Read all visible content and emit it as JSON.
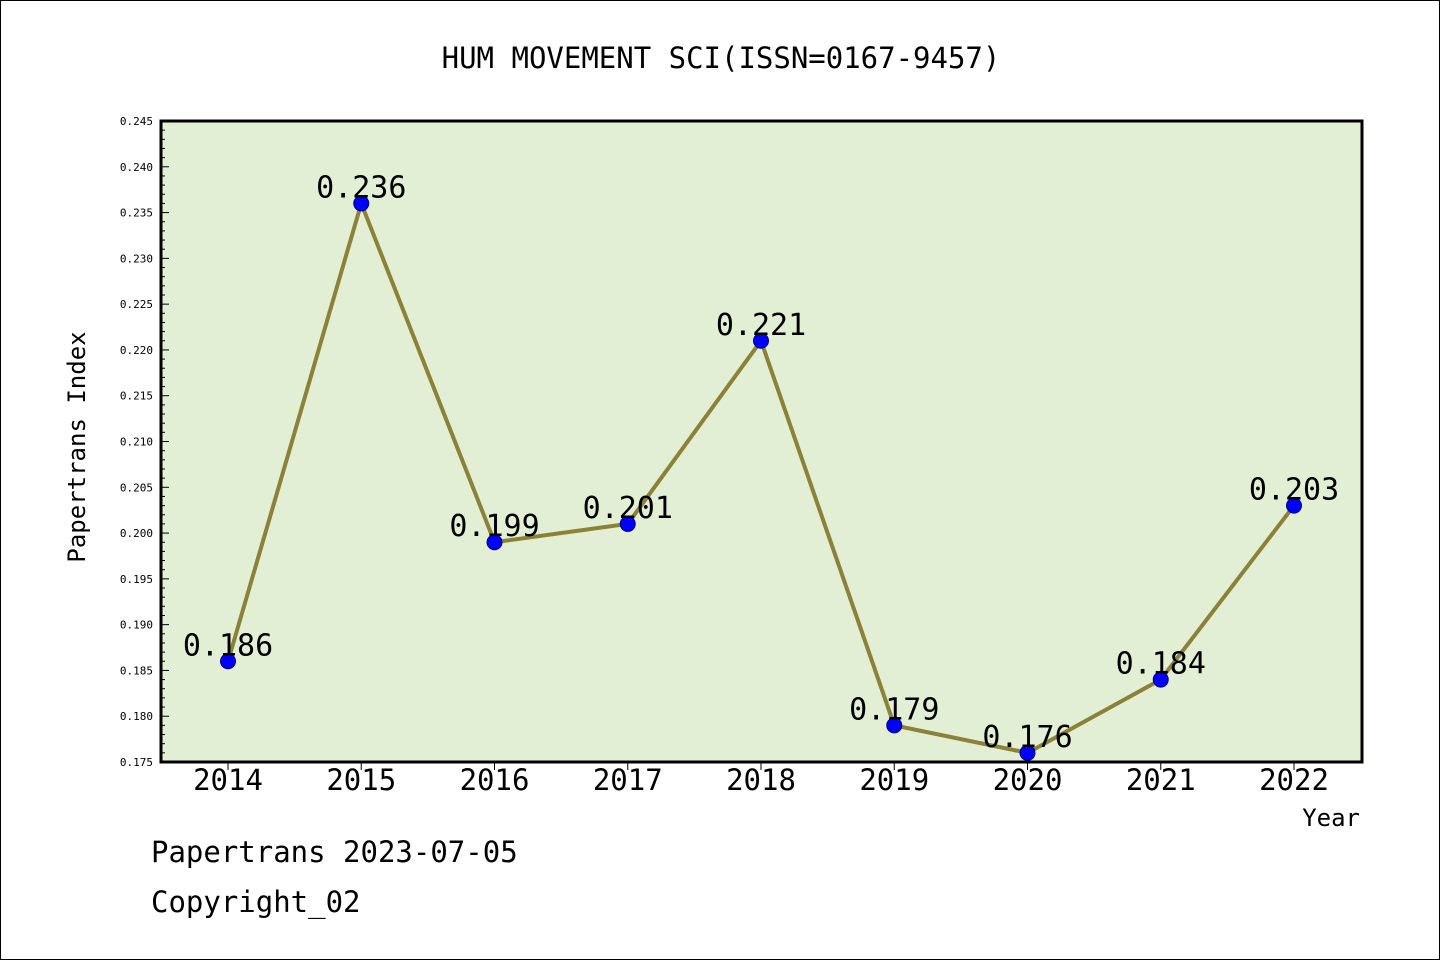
{
  "chart_data": {
    "type": "line",
    "title": "HUM MOVEMENT SCI(ISSN=0167-9457)",
    "xlabel": "Year",
    "ylabel": "Papertrans Index",
    "categories": [
      "2014",
      "2015",
      "2016",
      "2017",
      "2018",
      "2019",
      "2020",
      "2021",
      "2022"
    ],
    "series": [
      {
        "values": [
          0.186,
          0.236,
          0.199,
          0.201,
          0.221,
          0.179,
          0.176,
          0.184,
          0.203
        ],
        "point_labels": [
          "0.186",
          "0.236",
          "0.199",
          "0.201",
          "0.221",
          "0.179",
          "0.176",
          "0.184",
          "0.203"
        ]
      }
    ],
    "ylim": [
      0.175,
      0.245
    ],
    "yticks": [
      "0.175",
      "0.180",
      "0.185",
      "0.190",
      "0.195",
      "0.200",
      "0.205",
      "0.210",
      "0.215",
      "0.220",
      "0.225",
      "0.230",
      "0.235",
      "0.240",
      "0.245"
    ],
    "grid": false,
    "colors": {
      "plot_background": "#e2efd4",
      "line": "#8b8238",
      "marker": "#0000ff"
    }
  },
  "footer": {
    "line1": "Papertrans 2023-07-05",
    "line2": "Copyright_02"
  }
}
